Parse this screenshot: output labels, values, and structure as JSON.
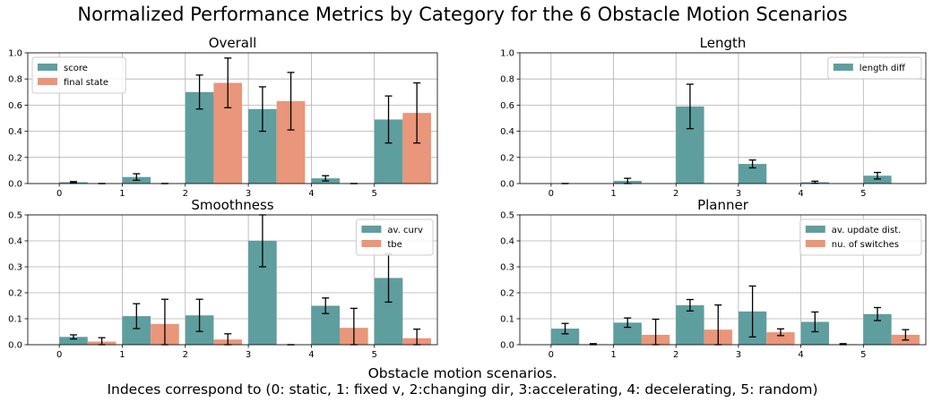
{
  "figure": {
    "title": "Normalized Performance Metrics by Category for the 6 Obstacle Motion Scenarios",
    "xlabel_line1": "Obstacle motion scenarios.",
    "xlabel_line2": "Indeces correspond to (0: static, 1: fixed v, 2:changing dir, 3:accelerating, 4: decelerating, 5: random)"
  },
  "colors": {
    "series1": "#5f9e9f",
    "series2": "#e9967a"
  },
  "chart_data": [
    {
      "type": "bar",
      "title": "Overall",
      "categories": [
        "0",
        "1",
        "2",
        "3",
        "4",
        "5"
      ],
      "ylim": [
        0,
        1.0
      ],
      "yticks": [
        "0.0",
        "0.2",
        "0.4",
        "0.6",
        "0.8",
        "1.0"
      ],
      "grid": true,
      "legend_position": "upper-left",
      "series": [
        {
          "name": "score",
          "values": [
            0.01,
            0.05,
            0.7,
            0.57,
            0.04,
            0.49
          ],
          "errors": [
            0.005,
            0.025,
            0.13,
            0.17,
            0.02,
            0.18
          ]
        },
        {
          "name": "final state",
          "values": [
            0.0,
            0.0,
            0.77,
            0.63,
            0.0,
            0.54
          ],
          "errors": [
            0,
            0,
            0.19,
            0.22,
            0,
            0.23
          ]
        }
      ]
    },
    {
      "type": "bar",
      "title": "Length",
      "categories": [
        "0",
        "1",
        "2",
        "3",
        "4",
        "5"
      ],
      "ylim": [
        0,
        1.0
      ],
      "yticks": [
        "0.0",
        "0.2",
        "0.4",
        "0.6",
        "0.8",
        "1.0"
      ],
      "grid": true,
      "legend_position": "upper-right",
      "series": [
        {
          "name": "length diff",
          "values": [
            0.0,
            0.02,
            0.59,
            0.15,
            0.01,
            0.06
          ],
          "errors": [
            0,
            0.02,
            0.17,
            0.03,
            0.008,
            0.025
          ]
        }
      ]
    },
    {
      "type": "bar",
      "title": "Smoothness",
      "categories": [
        "0",
        "1",
        "2",
        "3",
        "4",
        "5"
      ],
      "ylim": [
        0,
        0.5
      ],
      "yticks": [
        "0.0",
        "0.1",
        "0.2",
        "0.3",
        "0.4",
        "0.5"
      ],
      "grid": true,
      "legend_position": "upper-right",
      "series": [
        {
          "name": "av. curv",
          "values": [
            0.03,
            0.11,
            0.113,
            0.4,
            0.15,
            0.257
          ],
          "errors": [
            0.008,
            0.048,
            0.062,
            0.1,
            0.03,
            0.093
          ]
        },
        {
          "name": "tbe",
          "values": [
            0.012,
            0.08,
            0.02,
            0.0,
            0.065,
            0.025
          ],
          "errors": [
            0.015,
            0.095,
            0.022,
            0.0,
            0.075,
            0.035
          ]
        }
      ]
    },
    {
      "type": "bar",
      "title": "Planner",
      "categories": [
        "0",
        "1",
        "2",
        "3",
        "4",
        "5"
      ],
      "ylim": [
        0,
        0.5
      ],
      "yticks": [
        "0.0",
        "0.1",
        "0.2",
        "0.3",
        "0.4",
        "0.5"
      ],
      "grid": true,
      "legend_position": "upper-right",
      "series": [
        {
          "name": "av. update dist.",
          "values": [
            0.062,
            0.085,
            0.152,
            0.128,
            0.088,
            0.118
          ],
          "errors": [
            0.02,
            0.018,
            0.022,
            0.098,
            0.038,
            0.025
          ]
        },
        {
          "name": "nu. of switches",
          "values": [
            0.002,
            0.038,
            0.058,
            0.048,
            0.002,
            0.038
          ],
          "errors": [
            0.002,
            0.06,
            0.095,
            0.013,
            0.002,
            0.02
          ]
        }
      ]
    }
  ]
}
